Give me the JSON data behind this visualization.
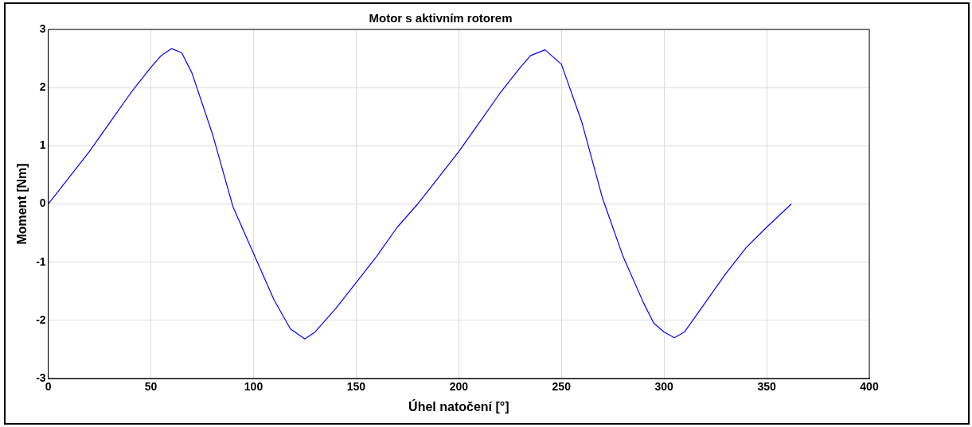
{
  "chart_data": {
    "type": "line",
    "title": "Motor s aktivním rotorem",
    "xlabel": "Úhel natočení [°]",
    "ylabel": "Moment [Nm]",
    "x": [
      0,
      10,
      20,
      30,
      40,
      50,
      55,
      60,
      65,
      70,
      80,
      90,
      100,
      110,
      118,
      125,
      130,
      140,
      150,
      160,
      170,
      180,
      190,
      200,
      210,
      220,
      230,
      235,
      242,
      250,
      260,
      270,
      280,
      290,
      295,
      300,
      305,
      310,
      320,
      330,
      340,
      350,
      362
    ],
    "series": [
      {
        "color": "#0000ff",
        "values": [
          0,
          0.45,
          0.9,
          1.4,
          1.9,
          2.35,
          2.55,
          2.67,
          2.6,
          2.25,
          1.2,
          -0.05,
          -0.85,
          -1.65,
          -2.15,
          -2.32,
          -2.2,
          -1.8,
          -1.35,
          -0.9,
          -0.4,
          0,
          0.45,
          0.9,
          1.4,
          1.9,
          2.35,
          2.55,
          2.65,
          2.4,
          1.4,
          0.1,
          -0.9,
          -1.7,
          -2.05,
          -2.2,
          -2.3,
          -2.2,
          -1.7,
          -1.2,
          -0.75,
          -0.4,
          0
        ]
      }
    ],
    "xlim": [
      0,
      400
    ],
    "xticks": [
      0,
      50,
      100,
      150,
      200,
      250,
      300,
      350,
      400
    ],
    "ylim": [
      -3,
      3
    ],
    "yticks": [
      -3,
      -2,
      -1,
      0,
      1,
      2,
      3
    ],
    "grid": true,
    "legend": false,
    "marker": "none",
    "line_style": "solid"
  }
}
